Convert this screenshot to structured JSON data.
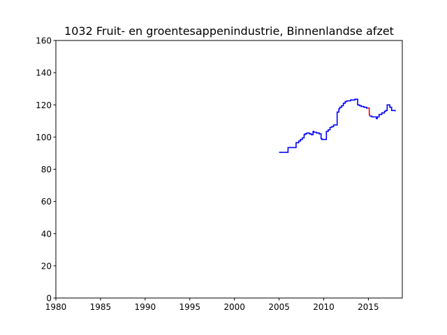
{
  "chart_data": {
    "type": "line",
    "title": "1032 Fruit- en groentesappenindustrie, Binnenlandse afzet",
    "xlabel": "",
    "ylabel": "",
    "xlim": [
      1980,
      2018.8
    ],
    "ylim": [
      0,
      160
    ],
    "x_ticks": [
      "1980",
      "1985",
      "1990",
      "1995",
      "2000",
      "2005",
      "2010",
      "2015"
    ],
    "y_ticks": [
      "0",
      "20",
      "40",
      "60",
      "80",
      "100",
      "120",
      "140",
      "160"
    ],
    "grid": false,
    "legend": "none",
    "series": [
      {
        "color": "#0000ff",
        "x": [
          2005.0,
          2005.9,
          2006.0,
          2006.8,
          2006.9,
          2007.2,
          2007.4,
          2007.6,
          2007.8,
          2007.9,
          2008.1,
          2008.4,
          2008.6,
          2008.8,
          2008.9,
          2009.2,
          2009.5,
          2009.7,
          2009.8,
          2010.1,
          2010.3,
          2010.5,
          2010.7,
          2010.9,
          2011.1,
          2011.5,
          2011.7,
          2011.8,
          2012.0,
          2012.2,
          2012.4,
          2012.6,
          2012.8,
          2013.0,
          2013.3,
          2013.5,
          2013.8,
          2014.0,
          2014.2,
          2014.5,
          2014.8,
          2014.95
        ],
        "values": [
          90.5,
          90.5,
          93.5,
          93.5,
          96.5,
          97.5,
          98.5,
          99.5,
          101.5,
          102.0,
          102.5,
          102.0,
          101.5,
          103.5,
          103.0,
          102.5,
          102.0,
          99.0,
          98.5,
          98.5,
          103.5,
          104.5,
          106.0,
          106.5,
          107.5,
          115.5,
          117.5,
          118.5,
          119.5,
          121.0,
          122.0,
          122.5,
          122.5,
          123.0,
          123.0,
          123.5,
          120.0,
          119.5,
          119.0,
          118.5,
          118.0,
          118.0
        ]
      },
      {
        "color": "#ff0000",
        "x": [
          2014.95,
          2015.1,
          2015.15
        ],
        "values": [
          118.0,
          114.0,
          113.0
        ]
      },
      {
        "color": "#0000ff",
        "x": [
          2015.15,
          2015.4,
          2015.7,
          2015.9,
          2016.0,
          2016.2,
          2016.5,
          2016.8,
          2016.95,
          2017.1,
          2017.2,
          2017.4,
          2017.5,
          2017.6,
          2017.8,
          2018.0
        ],
        "values": [
          113.0,
          112.5,
          112.5,
          111.5,
          112.5,
          114.0,
          115.0,
          116.0,
          116.5,
          120.0,
          120.0,
          118.5,
          118.5,
          116.5,
          116.5,
          116.0
        ]
      }
    ]
  }
}
